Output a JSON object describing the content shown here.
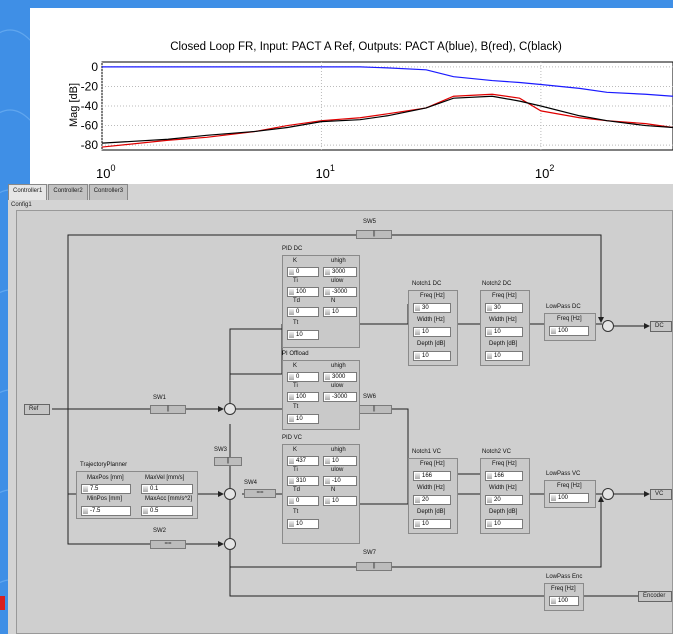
{
  "plot": {
    "title": "Closed Loop FR, Input: PACT A Ref, Outputs: PACT A(blue), B(red), C(black)",
    "ylabel": "Mag [dB]",
    "yticks": [
      "0",
      "-20",
      "-40",
      "-60",
      "-80"
    ],
    "xticks": [
      {
        "base": "10",
        "exp": "0"
      },
      {
        "base": "10",
        "exp": "1"
      },
      {
        "base": "10",
        "exp": "2"
      }
    ],
    "colors": {
      "A": "#1a1aff",
      "B": "#e00000",
      "C": "#000000"
    }
  },
  "chart_data": {
    "type": "line",
    "title": "Closed Loop FR, Input: PACT A Ref, Outputs: PACT A(blue), B(red), C(black)",
    "xlabel": "",
    "ylabel": "Mag [dB]",
    "xscale": "log",
    "xlim": [
      1,
      400
    ],
    "ylim": [
      -85,
      5
    ],
    "grid": true,
    "x": [
      1,
      2,
      3,
      5,
      7,
      10,
      15,
      20,
      30,
      40,
      60,
      80,
      100,
      150,
      200,
      300,
      400
    ],
    "series": [
      {
        "name": "PACT A",
        "color": "#1a1aff",
        "values": [
          0,
          0,
          0,
          0,
          0,
          0,
          0,
          -1,
          -3,
          -10,
          -14,
          -16,
          -18,
          -22,
          -26,
          -28,
          -30
        ]
      },
      {
        "name": "PACT B",
        "color": "#e00000",
        "values": [
          -82,
          -75,
          -72,
          -66,
          -60,
          -55,
          -52,
          -48,
          -42,
          -30,
          -28,
          -32,
          -45,
          -52,
          -55,
          -58,
          -62
        ]
      },
      {
        "name": "PACT C",
        "color": "#000000",
        "values": [
          -78,
          -74,
          -70,
          -66,
          -62,
          -56,
          -54,
          -50,
          -42,
          -32,
          -30,
          -35,
          -40,
          -50,
          -55,
          -60,
          -62
        ]
      }
    ]
  },
  "tabs": [
    "Controller1",
    "Controller2",
    "Controller3"
  ],
  "subtab": "Config1",
  "switches": {
    "sw1": "SW1",
    "sw2": "SW2",
    "sw3": "SW3",
    "sw4": "SW4",
    "sw5": "SW5",
    "sw6": "SW6",
    "sw7": "SW7"
  },
  "terminals": {
    "ref": "Ref",
    "dc": "DC",
    "vc": "VC",
    "encoder": "Encoder"
  },
  "pid_dc": {
    "title": "PID DC",
    "k_label": "K",
    "k": "0",
    "uhigh_label": "uhigh",
    "uhigh": "3000",
    "ti_label": "Ti",
    "ti": "100",
    "ulow_label": "ulow",
    "ulow": "-3000",
    "td_label": "Td",
    "td": "0",
    "n_label": "N",
    "n": "10",
    "tt_label": "Tt",
    "tt": "10"
  },
  "pi_offload": {
    "title": "PI Offload",
    "k_label": "K",
    "k": "0",
    "uhigh_label": "uhigh",
    "uhigh": "3000",
    "ti_label": "Ti",
    "ti": "100",
    "ulow_label": "ulow",
    "ulow": "-3000",
    "tt_label": "Tt",
    "tt": "10"
  },
  "pid_vc": {
    "title": "PID VC",
    "k_label": "K",
    "k": "437",
    "uhigh_label": "uhigh",
    "uhigh": "10",
    "ti_label": "Ti",
    "ti": "310",
    "ulow_label": "ulow",
    "ulow": "-10",
    "td_label": "Td",
    "td": "0",
    "n_label": "N",
    "n": "10",
    "tt_label": "Tt",
    "tt": "10"
  },
  "notch1_dc": {
    "title": "Notch1 DC",
    "freq_label": "Freq [Hz]",
    "freq": "30",
    "width_label": "Width [Hz]",
    "width": "10",
    "depth_label": "Depth [dB]",
    "depth": "10"
  },
  "notch2_dc": {
    "title": "Notch2 DC",
    "freq_label": "Freq [Hz]",
    "freq": "30",
    "width_label": "Width [Hz]",
    "width": "10",
    "depth_label": "Depth [dB]",
    "depth": "10"
  },
  "notch1_vc": {
    "title": "Notch1 VC",
    "freq_label": "Freq [Hz]",
    "freq": "166",
    "width_label": "Width [Hz]",
    "width": "20",
    "depth_label": "Depth [dB]",
    "depth": "10"
  },
  "notch2_vc": {
    "title": "Notch2 VC",
    "freq_label": "Freq [Hz]",
    "freq": "166",
    "width_label": "Width [Hz]",
    "width": "20",
    "depth_label": "Depth [dB]",
    "depth": "10"
  },
  "lowpass_dc": {
    "title": "LowPass DC",
    "freq_label": "Freq [Hz]",
    "freq": "100"
  },
  "lowpass_vc": {
    "title": "LowPass VC",
    "freq_label": "Freq [Hz]",
    "freq": "100"
  },
  "lowpass_enc": {
    "title": "LowPass Enc",
    "freq_label": "Freq [Hz]",
    "freq": "100"
  },
  "traj": {
    "title": "TrajectoryPlanner",
    "maxpos_label": "MaxPos [mm]",
    "maxpos": "7.5",
    "maxvel_label": "MaxVel [mm/s]",
    "maxvel": "0.1",
    "minpos_label": "MinPos [mm]",
    "minpos": "-7.5",
    "maxacc_label": "MaxAcc [mm/s^2]",
    "maxacc": "0.5"
  }
}
